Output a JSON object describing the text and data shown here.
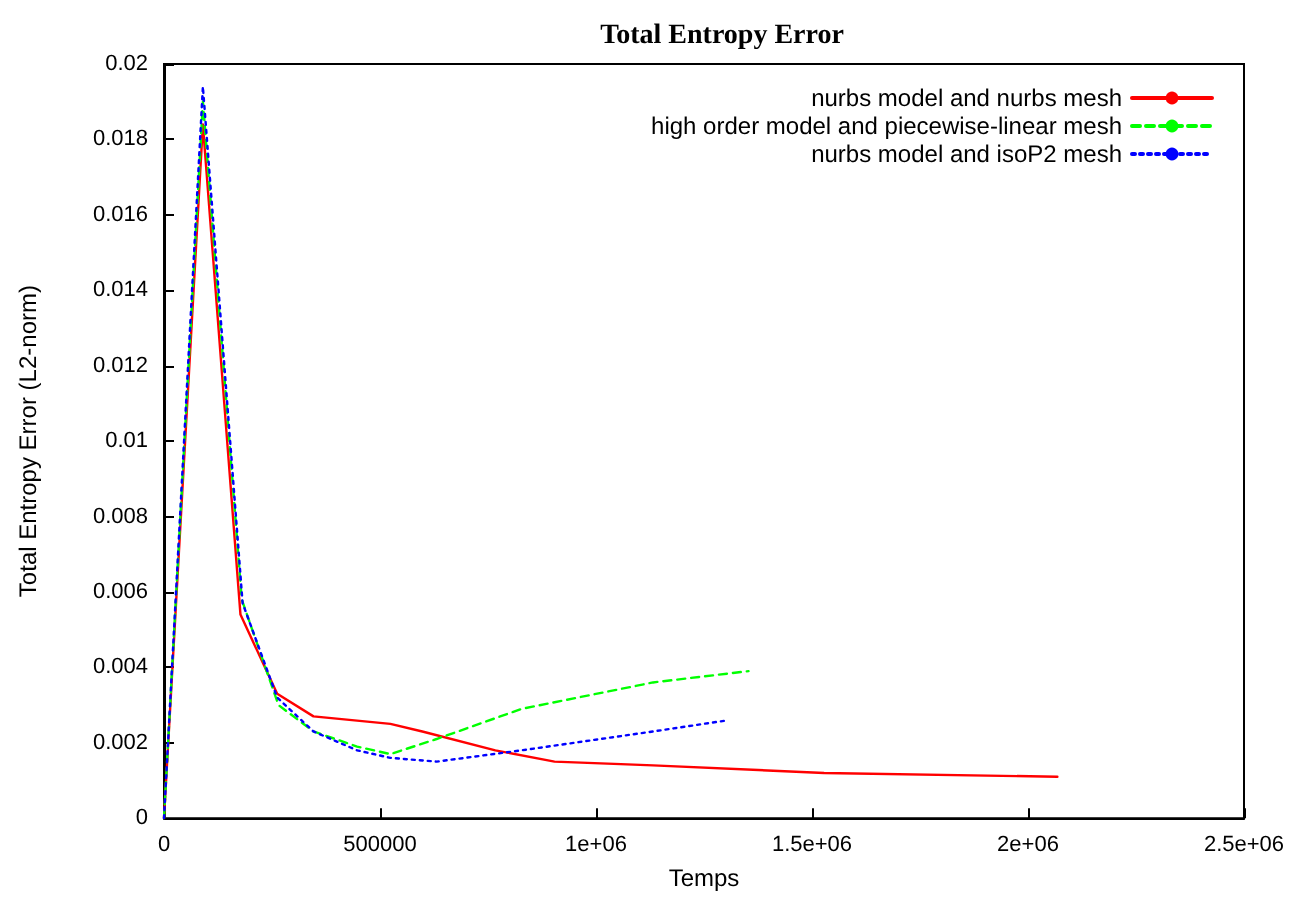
{
  "chart_data": {
    "type": "line",
    "title": "Total Entropy Error",
    "xlabel": "Temps",
    "ylabel": "Total Entropy Error (L2-norm)",
    "xlim": [
      0,
      2500000
    ],
    "xticks": [
      0,
      500000,
      {
        "value": 1000000,
        "label": "1e+06"
      },
      {
        "value": 1500000,
        "label": "1.5e+06"
      },
      {
        "value": 2000000,
        "label": "2e+06"
      },
      {
        "value": 2500000,
        "label": "2.5e+06"
      }
    ],
    "ylim": [
      0,
      0.02
    ],
    "yticks": [
      0,
      0.002,
      0.004,
      0.006,
      0.008,
      0.01,
      0.012,
      0.014,
      0.016,
      0.018,
      0.02
    ],
    "grid": false,
    "legend": "top right",
    "marker": "none",
    "series": [
      {
        "name": "nurbs model and nurbs mesh",
        "color": "#ff0000",
        "line_style": "solid",
        "x": [
          0,
          90000,
          177000,
          262000,
          346000,
          524000,
          598000,
          767000,
          904000,
          1132000,
          1528000,
          2068000
        ],
        "values": [
          0,
          0.0184,
          0.0054,
          0.0033,
          0.0027,
          0.0025,
          0.0023,
          0.0018,
          0.0015,
          0.0014,
          0.0012,
          0.0011
        ]
      },
      {
        "name": "high order model and piecewise-linear mesh",
        "color": "#00ff00",
        "line_style": "dashed",
        "x": [
          0,
          90000,
          180000,
          265000,
          346000,
          447000,
          524000,
          631000,
          828000,
          1132000,
          1353000
        ],
        "values": [
          0,
          0.019,
          0.0058,
          0.003,
          0.0023,
          0.0019,
          0.0017,
          0.0021,
          0.0029,
          0.0036,
          0.0039
        ]
      },
      {
        "name": "nurbs model and isoP2 mesh",
        "color": "#0000ff",
        "line_style": "dotted",
        "x": [
          0,
          90000,
          182000,
          262000,
          346000,
          447000,
          524000,
          631000,
          828000,
          1132000,
          1307000
        ],
        "values": [
          0,
          0.0194,
          0.0057,
          0.0032,
          0.0023,
          0.0018,
          0.0016,
          0.0015,
          0.0018,
          0.0023,
          0.0026
        ]
      }
    ]
  }
}
